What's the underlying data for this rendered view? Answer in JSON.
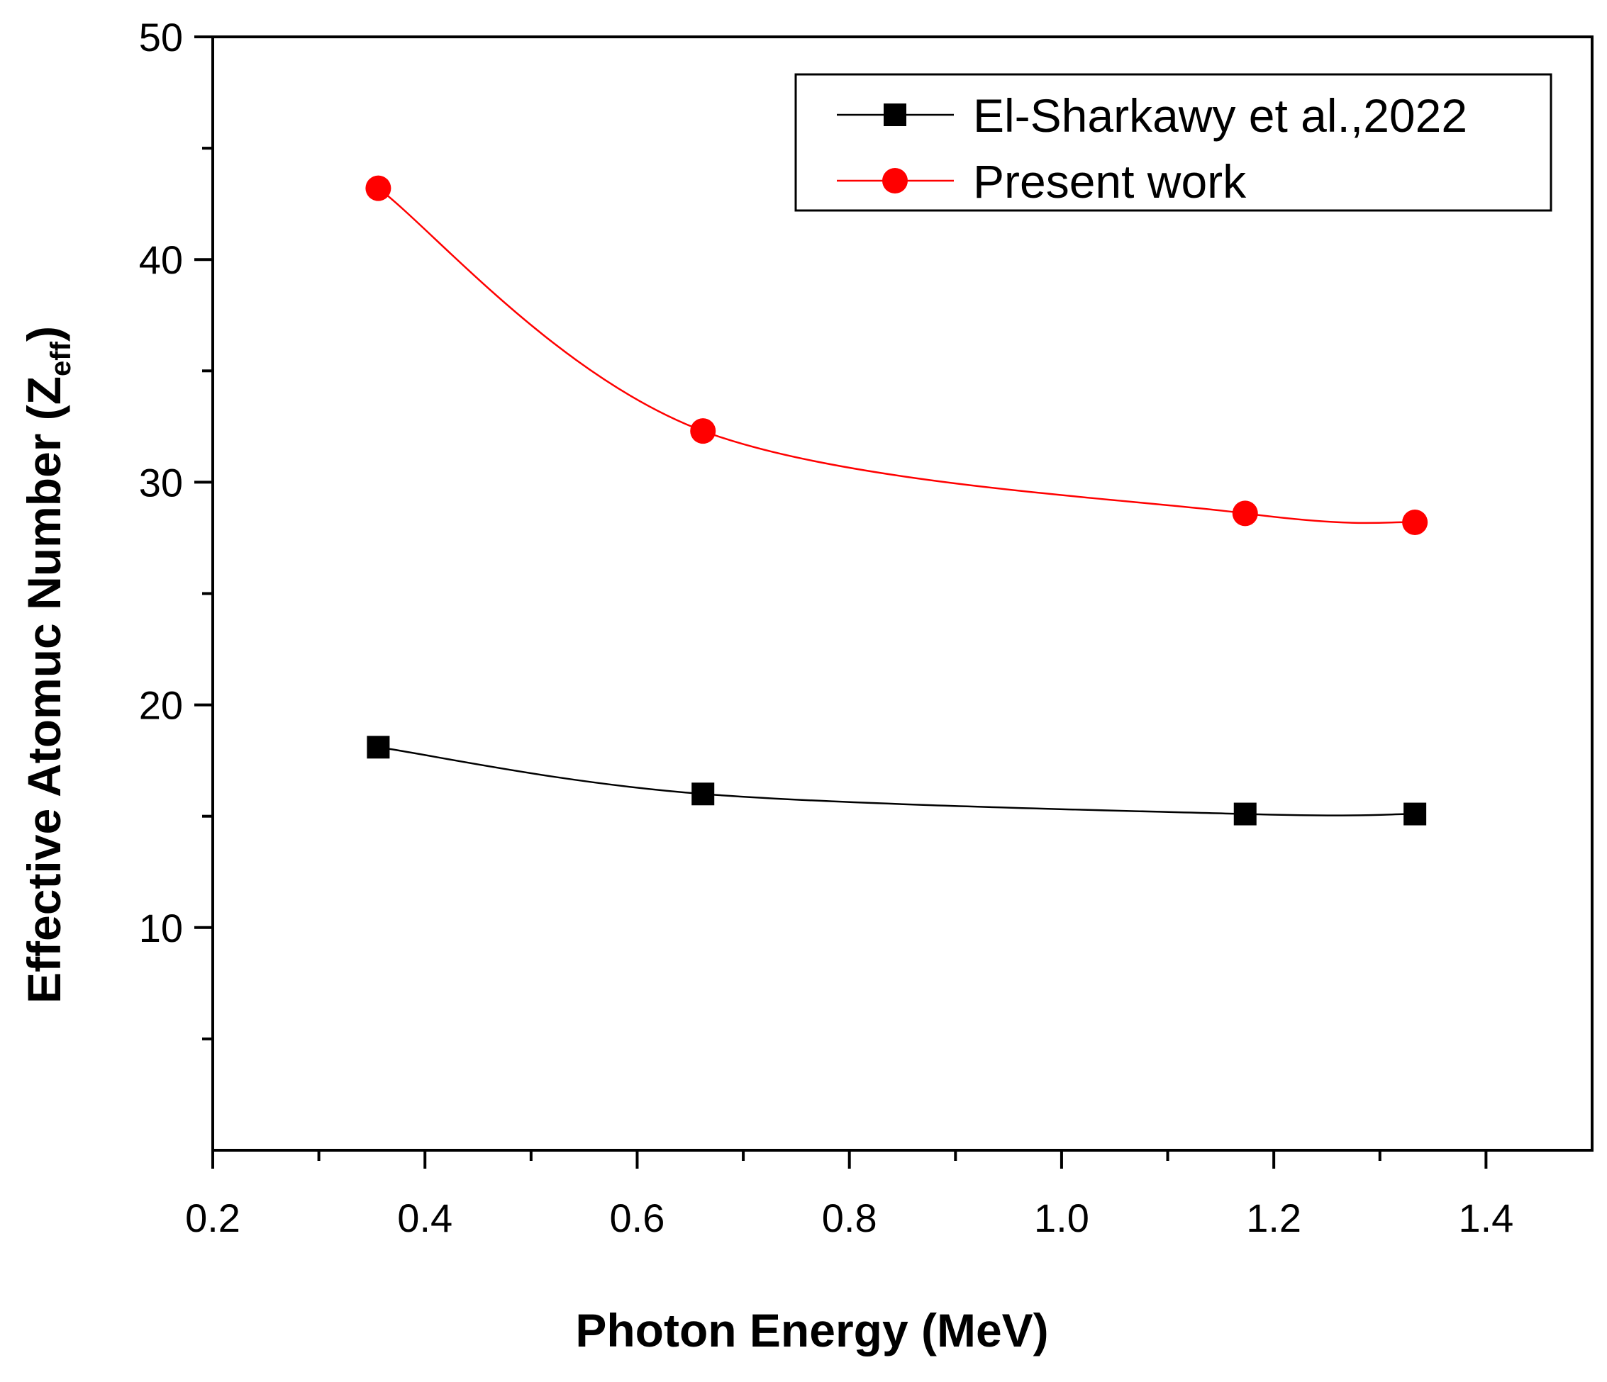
{
  "chart_data": {
    "type": "line",
    "title": "",
    "xlabel": "Photon Energy (MeV)",
    "ylabel": "Effective Atomuc Number (Z",
    "ylabel_subscript": "eff",
    "ylabel_close": ")",
    "xlim": [
      0.2,
      1.5
    ],
    "ylim": [
      0,
      50
    ],
    "x_ticks": [
      0.2,
      0.4,
      0.6,
      0.8,
      1.0,
      1.2,
      1.4
    ],
    "x_tick_labels": [
      "0.2",
      "0.4",
      "0.6",
      "0.8",
      "1.0",
      "1.2",
      "1.4"
    ],
    "y_ticks": [
      10,
      20,
      30,
      40,
      50
    ],
    "y_tick_labels": [
      "10",
      "20",
      "30",
      "40",
      "50"
    ],
    "grid": false,
    "legend_position": "top-right",
    "x": [
      0.356,
      0.662,
      1.173,
      1.333
    ],
    "series": [
      {
        "name": "El-Sharkawy et al.,2022",
        "marker": "square",
        "color": "#000000",
        "values": [
          18.1,
          16.0,
          15.1,
          15.1
        ]
      },
      {
        "name": "Present work",
        "marker": "circle",
        "color": "#ff0000",
        "values": [
          43.2,
          32.3,
          28.6,
          28.2
        ]
      }
    ]
  }
}
